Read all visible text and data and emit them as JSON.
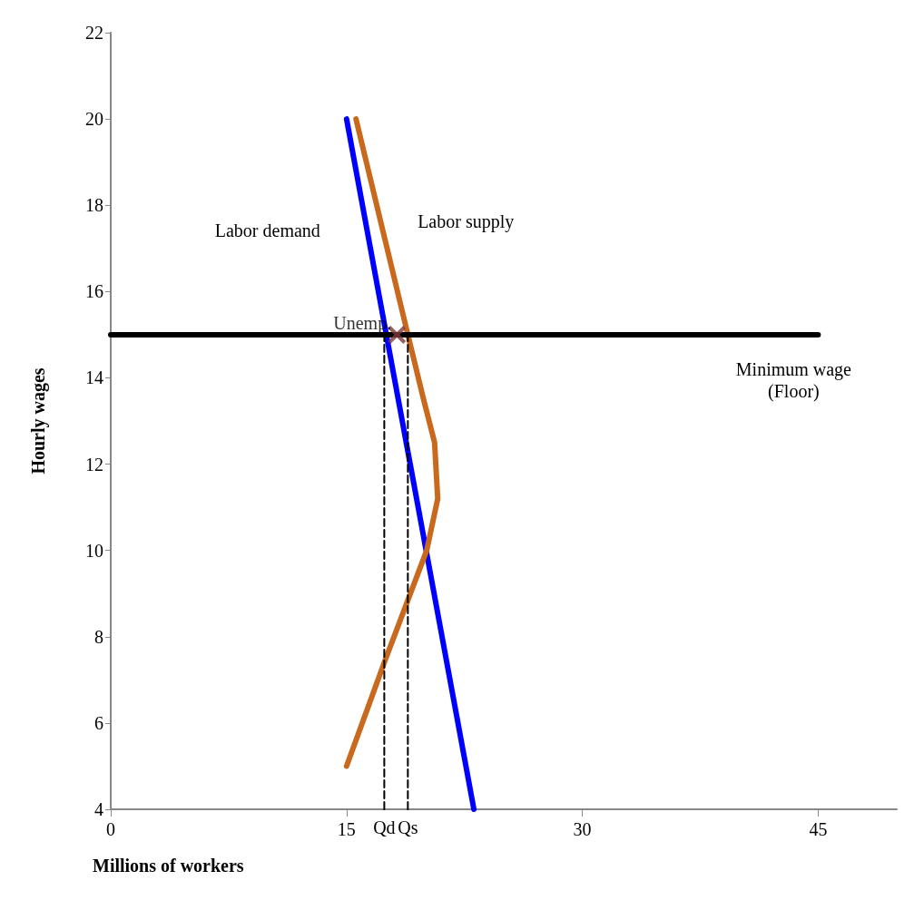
{
  "chart_data": {
    "type": "line",
    "xlabel": "Millions of workers",
    "ylabel": "Hourly wages",
    "xlim": [
      0,
      50
    ],
    "xticks": [
      0,
      15,
      30,
      45
    ],
    "ylim": [
      4,
      22
    ],
    "yticks": [
      4,
      6,
      8,
      10,
      12,
      14,
      16,
      18,
      20,
      22
    ],
    "grid": false,
    "legend": false,
    "marker": "none",
    "series": [
      {
        "name": "Labor demand",
        "color": "#0000ff",
        "x": [
          15,
          23.1
        ],
        "values": [
          20,
          4
        ]
      },
      {
        "name": "Labor supply",
        "color": "#c8691e",
        "x": [
          15,
          17.4,
          20.1,
          20.8,
          20.6,
          19.9,
          18.9,
          15.6
        ],
        "values": [
          5,
          7.4,
          10,
          11.2,
          12.5,
          13.5,
          15,
          20
        ]
      },
      {
        "name": "Minimum wage\n(Floor)",
        "color": "#000000",
        "x": [
          0,
          45
        ],
        "values": [
          15,
          15
        ]
      },
      {
        "name": "Qd",
        "color": "#000000",
        "x": [
          17.4,
          17.4
        ],
        "values": [
          4,
          15
        ],
        "line_style": "dashed"
      },
      {
        "name": "Qs",
        "color": "#000000",
        "x": [
          18.9,
          18.9
        ],
        "values": [
          4,
          15
        ],
        "line_style": "dashed"
      },
      {
        "name": "Unemp.",
        "type": "scatter",
        "color": "#7f3a3a",
        "x": [
          18.2
        ],
        "values": [
          15
        ],
        "marker": "cross"
      }
    ]
  }
}
